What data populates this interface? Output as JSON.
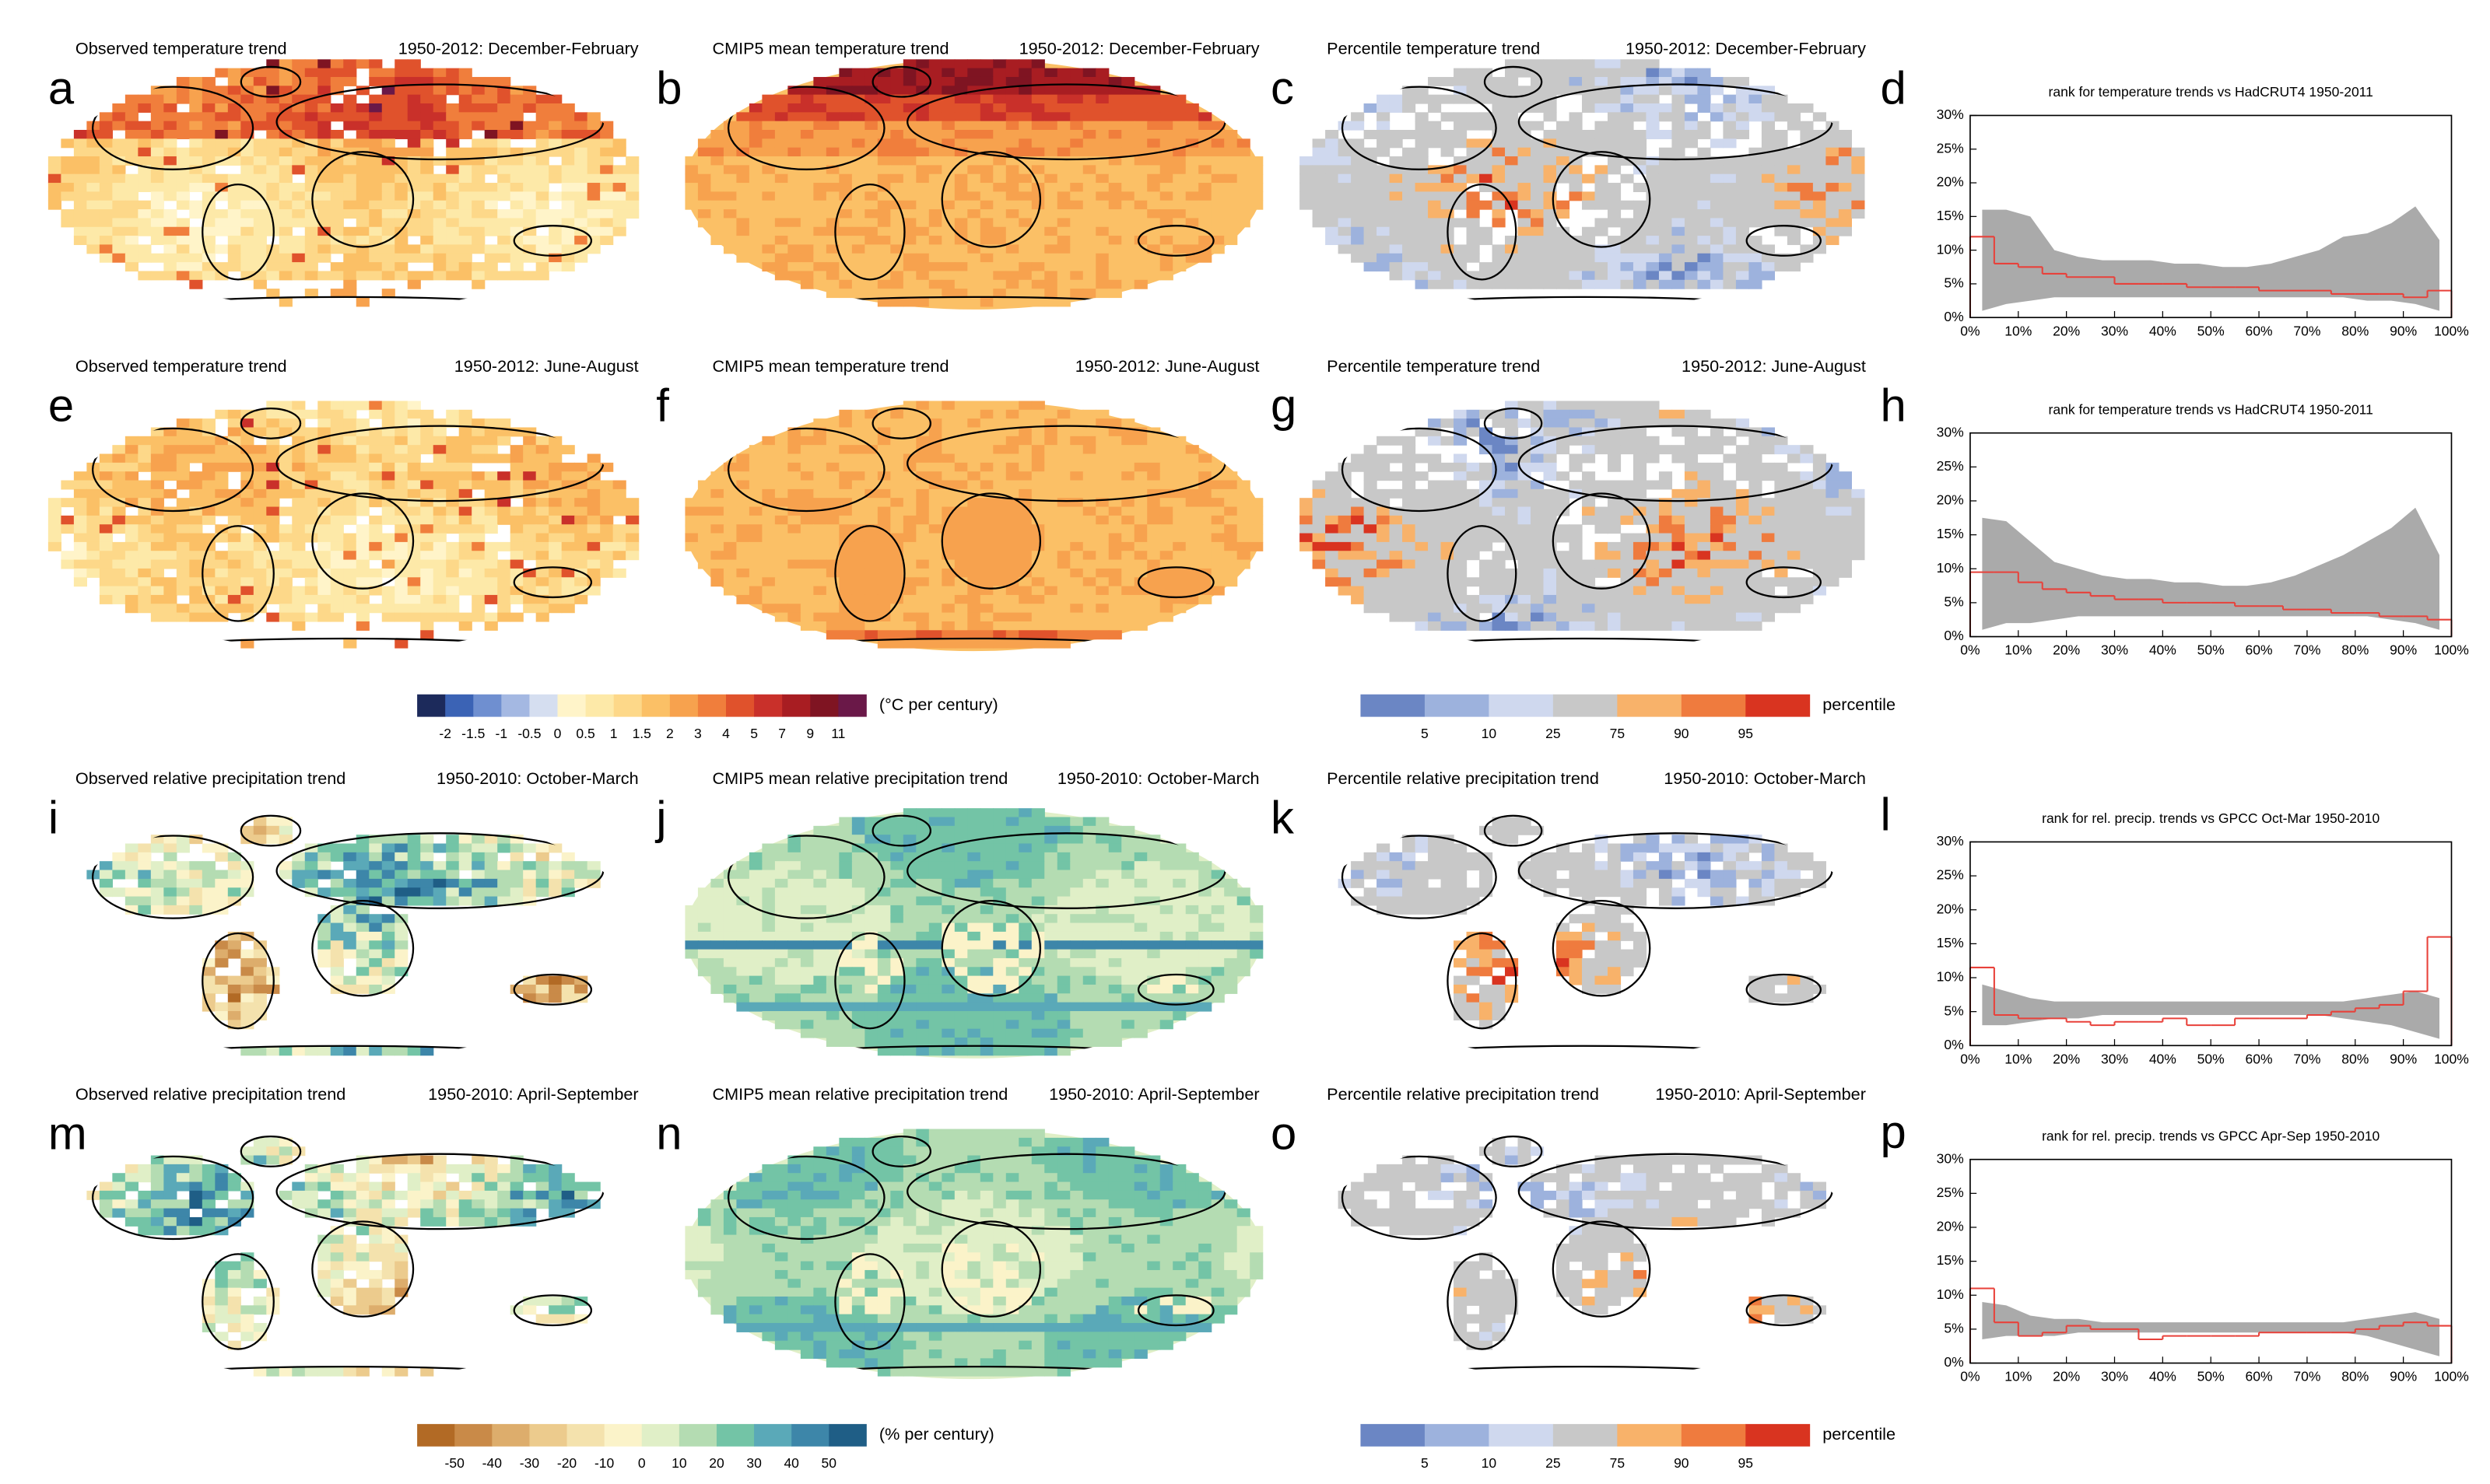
{
  "panels": [
    {
      "letter": "a",
      "title": "Observed temperature trend",
      "period": "1950-2012: December-February"
    },
    {
      "letter": "b",
      "title": "CMIP5 mean temperature trend",
      "period": "1950-2012: December-February"
    },
    {
      "letter": "c",
      "title": "Percentile temperature trend",
      "period": "1950-2012: December-February"
    },
    {
      "letter": "e",
      "title": "Observed temperature trend",
      "period": "1950-2012: June-August"
    },
    {
      "letter": "f",
      "title": "CMIP5 mean temperature trend",
      "period": "1950-2012: June-August"
    },
    {
      "letter": "g",
      "title": "Percentile temperature trend",
      "period": "1950-2012: June-August"
    },
    {
      "letter": "i",
      "title": "Observed relative precipitation trend",
      "period": "1950-2010: October-March"
    },
    {
      "letter": "j",
      "title": "CMIP5 mean relative precipitation trend",
      "period": "1950-2010: October-March"
    },
    {
      "letter": "k",
      "title": "Percentile relative precipitation trend",
      "period": "1950-2010: October-March"
    },
    {
      "letter": "m",
      "title": "Observed relative precipitation trend",
      "period": "1950-2010: April-September"
    },
    {
      "letter": "n",
      "title": "CMIP5 mean relative precipitation trend",
      "period": "1950-2010: April-September"
    },
    {
      "letter": "o",
      "title": "Percentile relative precipitation trend",
      "period": "1950-2010: April-September"
    }
  ],
  "colorbars": [
    {
      "colors": [
        "#1c2a5b",
        "#3b63b5",
        "#6f8fd0",
        "#a4b8e2",
        "#d5def0",
        "#fff4c9",
        "#fde9a8",
        "#fdd889",
        "#fbc066",
        "#f7a24e",
        "#f07e3c",
        "#e0522c",
        "#c9302a",
        "#a81d22",
        "#7f1422",
        "#6a1848"
      ],
      "ticks": [
        -2,
        -1.5,
        -1,
        -0.5,
        0,
        0.5,
        1,
        1.5,
        2,
        3,
        4,
        5,
        7,
        9,
        11
      ],
      "unit": "(°C per century)"
    },
    {
      "colors": [
        "#6b86c4",
        "#9db2dd",
        "#cfd8ee",
        "#c8c8c8",
        "#f8b26a",
        "#ef7b3e",
        "#d93420"
      ],
      "ticks": [
        5,
        10,
        25,
        75,
        90,
        95
      ],
      "unit": "percentile"
    },
    {
      "colors": [
        "#b26a25",
        "#c98a48",
        "#ddad6c",
        "#eccb8d",
        "#f4e2ad",
        "#fbf3c9",
        "#e0efc7",
        "#b4dcb2",
        "#73c4a6",
        "#5aa9b8",
        "#3d86a9",
        "#1f5e86"
      ],
      "ticks": [
        -50,
        -40,
        -30,
        -20,
        -10,
        0,
        10,
        20,
        30,
        40,
        50
      ],
      "unit": "(% per century)"
    },
    {
      "colors": [
        "#6b86c4",
        "#9db2dd",
        "#cfd8ee",
        "#c8c8c8",
        "#f8b26a",
        "#ef7b3e",
        "#d93420"
      ],
      "ticks": [
        5,
        10,
        25,
        75,
        90,
        95
      ],
      "unit": "percentile"
    }
  ],
  "chart_data": [
    {
      "type": "histogram",
      "letter": "d",
      "title": "rank for temperature trends vs HadCRUT4  1950-2011",
      "bins": [
        0,
        5,
        10,
        15,
        20,
        25,
        30,
        35,
        40,
        45,
        50,
        55,
        60,
        65,
        70,
        75,
        80,
        85,
        90,
        95,
        100
      ],
      "values": [
        12,
        8,
        7.5,
        6.5,
        6,
        6,
        5,
        5,
        5,
        4.5,
        4.5,
        4.5,
        4,
        4,
        4,
        3.5,
        3.5,
        3.5,
        3,
        4
      ],
      "color": "#e8413a",
      "band": {
        "x": [
          2.5,
          7.5,
          12.5,
          17.5,
          22.5,
          27.5,
          32.5,
          37.5,
          42.5,
          47.5,
          52.5,
          57.5,
          62.5,
          67.5,
          72.5,
          77.5,
          82.5,
          87.5,
          92.5,
          97.5
        ],
        "lower": [
          1,
          2,
          2.5,
          3,
          3,
          3,
          3,
          3,
          3,
          3,
          3,
          3,
          3,
          3,
          3,
          3,
          2.5,
          2.5,
          2,
          1
        ],
        "upper": [
          16,
          16,
          15,
          10,
          9,
          8.5,
          8.5,
          8.5,
          8,
          8,
          7.5,
          7.5,
          8,
          9,
          10,
          12,
          12.5,
          14,
          16.5,
          11.5
        ],
        "color": "#aaaaaa"
      },
      "xlim": [
        0,
        100
      ],
      "ylim": [
        0,
        30
      ],
      "xticks": [
        {
          "value": 0,
          "label": "0%"
        },
        {
          "value": 10,
          "label": "10%"
        },
        {
          "value": 20,
          "label": "20%"
        },
        {
          "value": 30,
          "label": "30%"
        },
        {
          "value": 40,
          "label": "40%"
        },
        {
          "value": 50,
          "label": "50%"
        },
        {
          "value": 60,
          "label": "60%"
        },
        {
          "value": 70,
          "label": "70%"
        },
        {
          "value": 80,
          "label": "80%"
        },
        {
          "value": 90,
          "label": "90%"
        },
        {
          "value": 100,
          "label": "100%"
        }
      ],
      "yticks": [
        {
          "value": 0,
          "label": "0%"
        },
        {
          "value": 5,
          "label": "5%"
        },
        {
          "value": 10,
          "label": "10%"
        },
        {
          "value": 15,
          "label": "15%"
        },
        {
          "value": 20,
          "label": "20%"
        },
        {
          "value": 25,
          "label": "25%"
        },
        {
          "value": 30,
          "label": "30%"
        }
      ]
    },
    {
      "type": "histogram",
      "letter": "h",
      "title": "rank for temperature trends vs HadCRUT4  1950-2011",
      "bins": [
        0,
        5,
        10,
        15,
        20,
        25,
        30,
        35,
        40,
        45,
        50,
        55,
        60,
        65,
        70,
        75,
        80,
        85,
        90,
        95,
        100
      ],
      "values": [
        9.5,
        9.5,
        8,
        7,
        6.5,
        6,
        5.5,
        5.5,
        5,
        5,
        5,
        4.5,
        4.5,
        4,
        4,
        3.5,
        3.5,
        3,
        3,
        2.5
      ],
      "color": "#e8413a",
      "band": {
        "x": [
          2.5,
          7.5,
          12.5,
          17.5,
          22.5,
          27.5,
          32.5,
          37.5,
          42.5,
          47.5,
          52.5,
          57.5,
          62.5,
          67.5,
          72.5,
          77.5,
          82.5,
          87.5,
          92.5,
          97.5
        ],
        "lower": [
          1,
          2,
          2,
          2.5,
          3,
          3,
          3,
          3,
          3,
          3,
          3,
          3,
          3,
          3,
          3,
          3,
          3,
          2.5,
          2,
          1
        ],
        "upper": [
          17.5,
          17,
          14,
          11,
          10,
          9,
          8.5,
          8.5,
          8,
          8,
          7.5,
          7.5,
          8,
          9,
          10.5,
          12,
          14,
          16,
          19,
          12
        ],
        "color": "#aaaaaa"
      },
      "xlim": [
        0,
        100
      ],
      "ylim": [
        0,
        30
      ],
      "xticks": [
        {
          "value": 0,
          "label": "0%"
        },
        {
          "value": 10,
          "label": "10%"
        },
        {
          "value": 20,
          "label": "20%"
        },
        {
          "value": 30,
          "label": "30%"
        },
        {
          "value": 40,
          "label": "40%"
        },
        {
          "value": 50,
          "label": "50%"
        },
        {
          "value": 60,
          "label": "60%"
        },
        {
          "value": 70,
          "label": "70%"
        },
        {
          "value": 80,
          "label": "80%"
        },
        {
          "value": 90,
          "label": "90%"
        },
        {
          "value": 100,
          "label": "100%"
        }
      ],
      "yticks": [
        {
          "value": 0,
          "label": "0%"
        },
        {
          "value": 5,
          "label": "5%"
        },
        {
          "value": 10,
          "label": "10%"
        },
        {
          "value": 15,
          "label": "15%"
        },
        {
          "value": 20,
          "label": "20%"
        },
        {
          "value": 25,
          "label": "25%"
        },
        {
          "value": 30,
          "label": "30%"
        }
      ]
    },
    {
      "type": "histogram",
      "letter": "l",
      "title": "rank for rel. precip. trends vs GPCC Oct-Mar 1950-2010",
      "bins": [
        0,
        5,
        10,
        15,
        20,
        25,
        30,
        35,
        40,
        45,
        50,
        55,
        60,
        65,
        70,
        75,
        80,
        85,
        90,
        95,
        100
      ],
      "values": [
        11.5,
        4.5,
        4,
        4,
        3.5,
        3,
        3.5,
        3.5,
        4,
        3,
        3,
        4,
        4,
        4,
        4.5,
        5,
        5.5,
        6,
        8,
        16
      ],
      "color": "#e8413a",
      "band": {
        "x": [
          2.5,
          7.5,
          12.5,
          17.5,
          22.5,
          27.5,
          32.5,
          37.5,
          42.5,
          47.5,
          52.5,
          57.5,
          62.5,
          67.5,
          72.5,
          77.5,
          82.5,
          87.5,
          92.5,
          97.5
        ],
        "lower": [
          3,
          3,
          3.5,
          4,
          4,
          4.5,
          4.5,
          4.5,
          4.5,
          4.5,
          4.5,
          4.5,
          4.5,
          4.5,
          4.5,
          4,
          3.5,
          3,
          2,
          1
        ],
        "upper": [
          9,
          8,
          7,
          6.5,
          6.5,
          6.5,
          6.5,
          6.5,
          6.5,
          6.5,
          6.5,
          6.5,
          6.5,
          6.5,
          6.5,
          6.5,
          7,
          7.5,
          8,
          7
        ],
        "color": "#aaaaaa"
      },
      "xlim": [
        0,
        100
      ],
      "ylim": [
        0,
        30
      ],
      "xticks": [
        {
          "value": 0,
          "label": "0%"
        },
        {
          "value": 10,
          "label": "10%"
        },
        {
          "value": 20,
          "label": "20%"
        },
        {
          "value": 30,
          "label": "30%"
        },
        {
          "value": 40,
          "label": "40%"
        },
        {
          "value": 50,
          "label": "50%"
        },
        {
          "value": 60,
          "label": "60%"
        },
        {
          "value": 70,
          "label": "70%"
        },
        {
          "value": 80,
          "label": "80%"
        },
        {
          "value": 90,
          "label": "90%"
        },
        {
          "value": 100,
          "label": "100%"
        }
      ],
      "yticks": [
        {
          "value": 0,
          "label": "0%"
        },
        {
          "value": 5,
          "label": "5%"
        },
        {
          "value": 10,
          "label": "10%"
        },
        {
          "value": 15,
          "label": "15%"
        },
        {
          "value": 20,
          "label": "20%"
        },
        {
          "value": 25,
          "label": "25%"
        },
        {
          "value": 30,
          "label": "30%"
        }
      ]
    },
    {
      "type": "histogram",
      "letter": "p",
      "title": "rank for rel. precip. trends vs GPCC Apr-Sep 1950-2010",
      "bins": [
        0,
        5,
        10,
        15,
        20,
        25,
        30,
        35,
        40,
        45,
        50,
        55,
        60,
        65,
        70,
        75,
        80,
        85,
        90,
        95,
        100
      ],
      "values": [
        11,
        6,
        4,
        4.5,
        5.5,
        5,
        5,
        3.5,
        4,
        4,
        4,
        4,
        4.5,
        4.5,
        4.5,
        4.5,
        5,
        5.5,
        6,
        5.5
      ],
      "color": "#e8413a",
      "band": {
        "x": [
          2.5,
          7.5,
          12.5,
          17.5,
          22.5,
          27.5,
          32.5,
          37.5,
          42.5,
          47.5,
          52.5,
          57.5,
          62.5,
          67.5,
          72.5,
          77.5,
          82.5,
          87.5,
          92.5,
          97.5
        ],
        "lower": [
          3.5,
          4,
          4,
          4,
          4.5,
          4.5,
          4.5,
          4.5,
          4.5,
          4.5,
          4.5,
          4.5,
          4.5,
          4.5,
          4.5,
          4.5,
          4,
          3,
          2,
          1
        ],
        "upper": [
          9,
          8.5,
          7,
          6.5,
          6.5,
          6,
          6,
          6,
          6,
          6,
          6,
          6,
          6,
          6,
          6,
          6,
          6.5,
          7,
          7.5,
          6.5
        ],
        "color": "#aaaaaa"
      },
      "xlim": [
        0,
        100
      ],
      "ylim": [
        0,
        30
      ],
      "xticks": [
        {
          "value": 0,
          "label": "0%"
        },
        {
          "value": 10,
          "label": "10%"
        },
        {
          "value": 20,
          "label": "20%"
        },
        {
          "value": 30,
          "label": "30%"
        },
        {
          "value": 40,
          "label": "40%"
        },
        {
          "value": 50,
          "label": "50%"
        },
        {
          "value": 60,
          "label": "60%"
        },
        {
          "value": 70,
          "label": "70%"
        },
        {
          "value": 80,
          "label": "80%"
        },
        {
          "value": 90,
          "label": "90%"
        },
        {
          "value": 100,
          "label": "100%"
        }
      ],
      "yticks": [
        {
          "value": 0,
          "label": "0%"
        },
        {
          "value": 5,
          "label": "5%"
        },
        {
          "value": 10,
          "label": "10%"
        },
        {
          "value": 15,
          "label": "15%"
        },
        {
          "value": 20,
          "label": "20%"
        },
        {
          "value": 25,
          "label": "25%"
        },
        {
          "value": 30,
          "label": "30%"
        }
      ]
    }
  ]
}
